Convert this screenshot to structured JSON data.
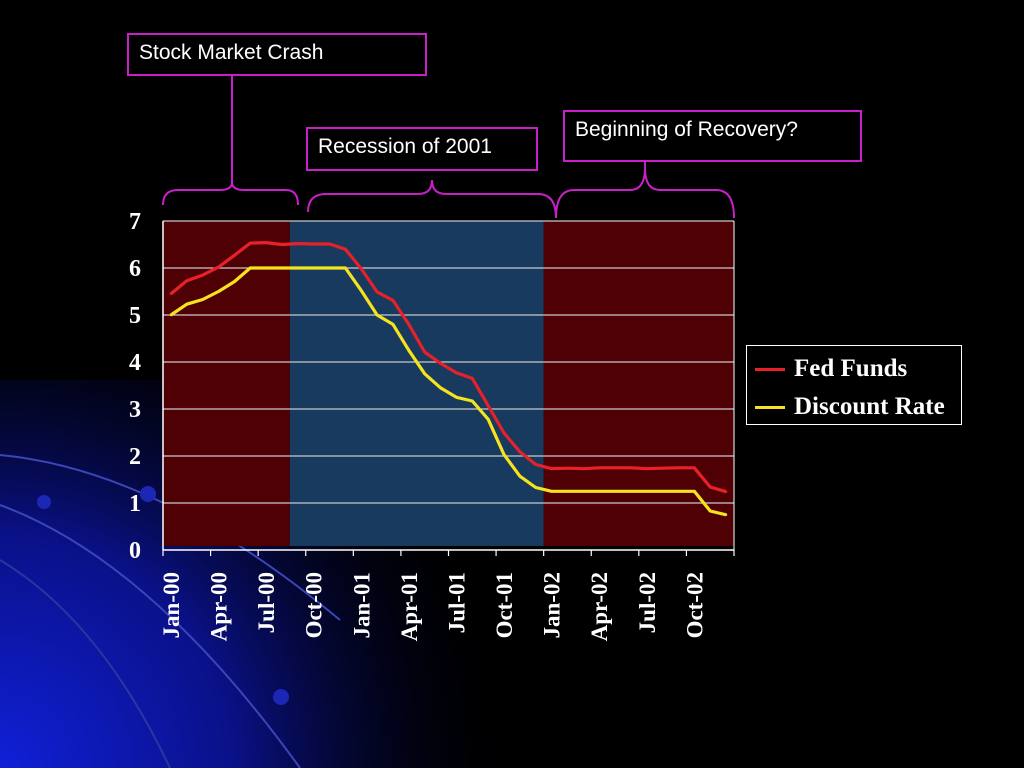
{
  "annotations": {
    "crash": "Stock Market Crash",
    "recession": "Recession of 2001",
    "recovery": "Beginning of Recovery?"
  },
  "colors": {
    "background": "#000000",
    "band_red": "#4f0005",
    "band_blue": "#173a5e",
    "callout_border": "#c81fc8",
    "fed_funds": "#e8202a",
    "discount_rate": "#f5e31e"
  },
  "chart_data": {
    "type": "line",
    "title": "",
    "xlabel": "",
    "ylabel": "",
    "ylim": [
      0,
      7
    ],
    "yticks": [
      "0",
      "1",
      "2",
      "3",
      "4",
      "5",
      "6",
      "7"
    ],
    "xtick_labels": [
      "Jan-00",
      "Apr-00",
      "Jul-00",
      "Oct-00",
      "Jan-01",
      "Apr-01",
      "Jul-01",
      "Oct-01",
      "Jan-02",
      "Apr-02",
      "Jul-02",
      "Oct-02"
    ],
    "grid": true,
    "legend_position": "right",
    "shaded_periods": [
      {
        "label": "Stock Market Crash",
        "start": "Jan-00",
        "end": "Sep-00",
        "color": "#4f0005"
      },
      {
        "label": "Recession of 2001",
        "start": "Sep-00",
        "end": "Jan-02",
        "color": "#173a5e"
      },
      {
        "label": "Beginning of Recovery?",
        "start": "Jan-02",
        "end": "Dec-02",
        "color": "#4f0005"
      }
    ],
    "months": [
      "Jan-00",
      "Feb-00",
      "Mar-00",
      "Apr-00",
      "May-00",
      "Jun-00",
      "Jul-00",
      "Aug-00",
      "Sep-00",
      "Oct-00",
      "Nov-00",
      "Dec-00",
      "Jan-01",
      "Feb-01",
      "Mar-01",
      "Apr-01",
      "May-01",
      "Jun-01",
      "Jul-01",
      "Aug-01",
      "Sep-01",
      "Oct-01",
      "Nov-01",
      "Dec-01",
      "Jan-02",
      "Feb-02",
      "Mar-02",
      "Apr-02",
      "May-02",
      "Jun-02",
      "Jul-02",
      "Aug-02",
      "Sep-02",
      "Oct-02",
      "Nov-02",
      "Dec-02"
    ],
    "series": [
      {
        "name": "Fed Funds",
        "color": "#e8202a",
        "values": [
          5.45,
          5.73,
          5.85,
          6.02,
          6.27,
          6.53,
          6.54,
          6.5,
          6.52,
          6.51,
          6.51,
          6.4,
          5.98,
          5.49,
          5.31,
          4.8,
          4.21,
          3.97,
          3.77,
          3.65,
          3.07,
          2.49,
          2.09,
          1.82,
          1.73,
          1.74,
          1.73,
          1.75,
          1.75,
          1.75,
          1.73,
          1.74,
          1.75,
          1.75,
          1.34,
          1.24
        ]
      },
      {
        "name": "Discount Rate",
        "color": "#f5e31e",
        "values": [
          5.0,
          5.23,
          5.33,
          5.5,
          5.71,
          6.0,
          6.0,
          6.0,
          6.0,
          6.0,
          6.0,
          6.0,
          5.52,
          5.0,
          4.8,
          4.25,
          3.75,
          3.45,
          3.25,
          3.17,
          2.78,
          2.03,
          1.57,
          1.33,
          1.25,
          1.25,
          1.25,
          1.25,
          1.25,
          1.25,
          1.25,
          1.25,
          1.25,
          1.25,
          0.83,
          0.75
        ]
      }
    ]
  }
}
